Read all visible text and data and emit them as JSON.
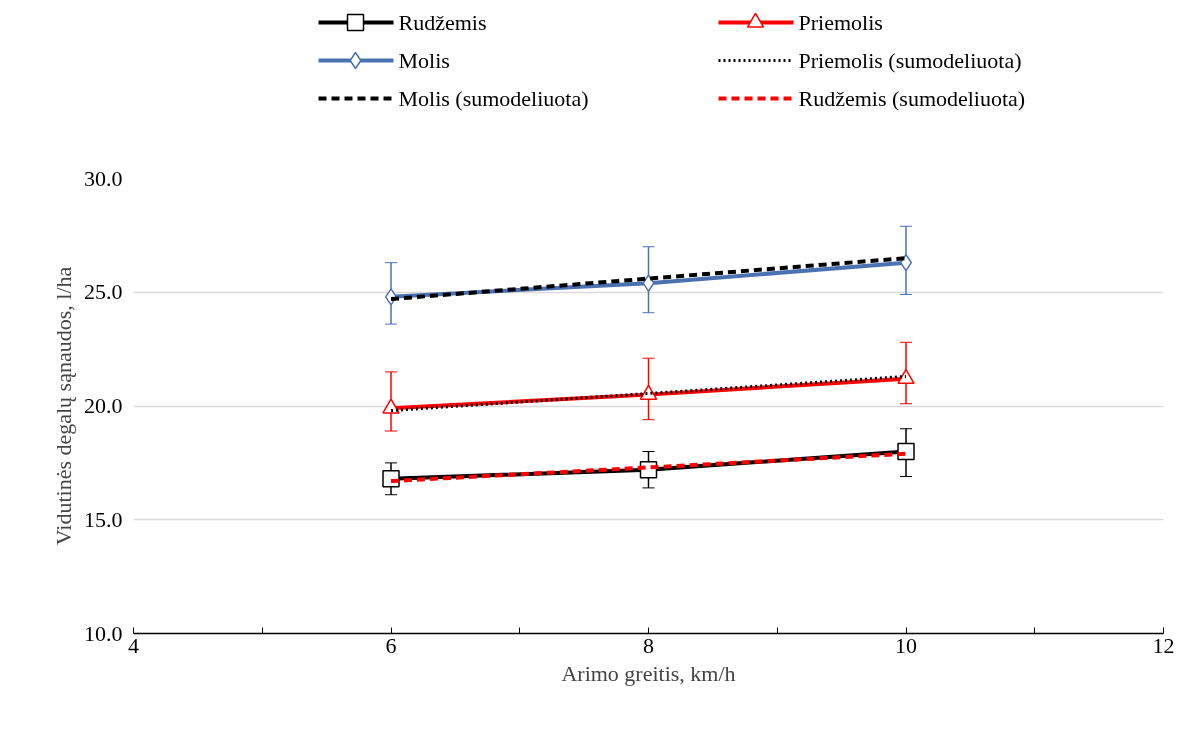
{
  "chart_data": {
    "type": "line",
    "xlabel": "Arimo greitis, km/h",
    "ylabel": "Vidutinės degalų sąnaudos, l/ha",
    "x": [
      6,
      8,
      10
    ],
    "xlim": [
      4,
      12
    ],
    "xticks": [
      4,
      {
        "value": 5,
        "label": null
      },
      6,
      {
        "value": 7,
        "label": null
      },
      8,
      {
        "value": 9,
        "label": null
      },
      10,
      {
        "value": 11,
        "label": null
      },
      12
    ],
    "ylim": [
      10,
      30
    ],
    "yticks": [
      {
        "value": 10,
        "label": "10.0"
      },
      {
        "value": 15,
        "label": "15.0"
      },
      {
        "value": 20,
        "label": "20.0"
      },
      {
        "value": 25,
        "label": "25.0"
      },
      {
        "value": 30,
        "label": "30.0"
      }
    ],
    "grid": "y",
    "legend": "top",
    "series": [
      {
        "name": "Rudžemis",
        "color": "#000000",
        "marker": "square",
        "line_style": "solid",
        "values": [
          16.8,
          17.2,
          18.0
        ],
        "errors": [
          [
            16.1,
            17.5
          ],
          [
            16.4,
            18.0
          ],
          [
            16.9,
            19.0
          ]
        ]
      },
      {
        "name": "Priemolis",
        "color": "#ff0000",
        "marker": "triangle",
        "line_style": "solid",
        "values": [
          19.9,
          20.5,
          21.2
        ],
        "errors": [
          [
            18.9,
            21.5
          ],
          [
            19.4,
            22.1
          ],
          [
            20.1,
            22.8
          ]
        ]
      },
      {
        "name": "Molis",
        "color": "#4a72b0",
        "marker": "diamond",
        "line_style": "solid",
        "values": [
          24.8,
          25.4,
          26.3
        ],
        "errors": [
          [
            23.6,
            26.3
          ],
          [
            24.1,
            27.0
          ],
          [
            24.9,
            27.9
          ]
        ]
      },
      {
        "name": "Priemolis (sumodeliuota)",
        "color": "#000000",
        "marker": "none",
        "line_style": "dotted",
        "values": [
          19.8,
          20.55,
          21.3
        ]
      },
      {
        "name": "Molis (sumodeliuota)",
        "color": "#000000",
        "marker": "none",
        "line_style": "dashed",
        "values": [
          24.7,
          25.6,
          26.5
        ]
      },
      {
        "name": "Rudžemis (sumodeliuota)",
        "color": "#ff0000",
        "marker": "none",
        "line_style": "dashed",
        "values": [
          16.7,
          17.3,
          17.9
        ]
      }
    ]
  }
}
